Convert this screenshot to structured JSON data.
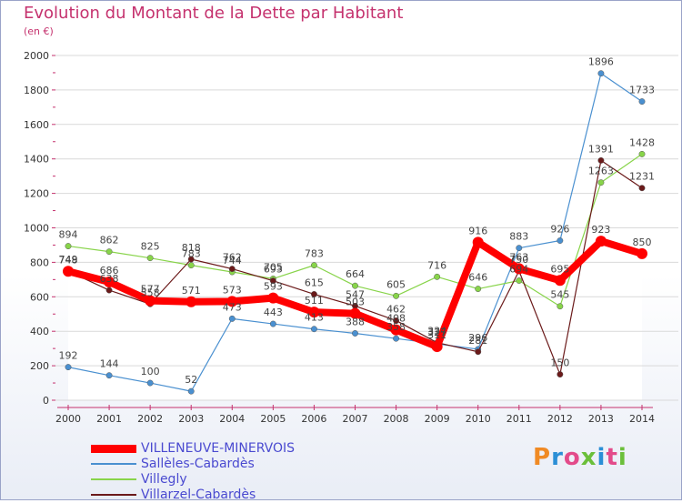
{
  "header": {
    "title": "Evolution du Montant de la Dette par Habitant",
    "subtitle": "(en €)"
  },
  "logo": {
    "text": "Proxiti",
    "colors": [
      "#f08a24",
      "#2b8fd6",
      "#e34b8a",
      "#6bbf3a",
      "#2b8fd6",
      "#e34b8a",
      "#6bbf3a"
    ]
  },
  "chart_data": {
    "type": "line",
    "title": "Evolution du Montant de la Dette par Habitant",
    "subtitle": "(en €)",
    "xlabel": "",
    "ylabel": "",
    "x": [
      "2000",
      "2001",
      "2002",
      "2003",
      "2004",
      "2005",
      "2006",
      "2007",
      "2008",
      "2009",
      "2010",
      "2011",
      "2012",
      "2013",
      "2014"
    ],
    "ylim": [
      0,
      2000
    ],
    "yticks": [
      0,
      200,
      400,
      600,
      800,
      1000,
      1200,
      1400,
      1600,
      1800,
      2000
    ],
    "grid": true,
    "legend_position": "bottom-left",
    "series": [
      {
        "name": "VILLENEUVE-MINERVOIS",
        "color": "#ff0000",
        "values": [
          748,
          686,
          577,
          571,
          573,
          593,
          511,
          503,
          408,
          311,
          916,
          763,
          695,
          923,
          850
        ],
        "labels": [
          "748",
          "686",
          "577",
          "571",
          "573",
          "593",
          "511",
          "503",
          "408",
          "311",
          "916",
          "763",
          "695",
          "923",
          "850"
        ]
      },
      {
        "name": "Sallèles-Cabardès",
        "color": "#4a90d0",
        "values": [
          192,
          144,
          100,
          52,
          473,
          443,
          413,
          388,
          358,
          327,
          296,
          883,
          926,
          1896,
          1733
        ],
        "labels": [
          "192",
          "144",
          "100",
          "52",
          "473",
          "443",
          "413",
          "388",
          "358",
          "327",
          "296",
          "883",
          "926",
          "1896",
          "1733"
        ]
      },
      {
        "name": "Villegly",
        "color": "#88d44a",
        "values": [
          894,
          862,
          825,
          783,
          744,
          705,
          783,
          664,
          605,
          716,
          646,
          694,
          545,
          1263,
          1428
        ],
        "labels": [
          "894",
          "862",
          "825",
          "783",
          "744",
          "705",
          "783",
          "664",
          "605",
          "716",
          "646",
          "694",
          "545",
          "1263",
          "1428"
        ]
      },
      {
        "name": "Villarzel-Cabardès",
        "color": "#6b1a1a",
        "values": [
          749,
          638,
          558,
          818,
          762,
          693,
          615,
          547,
          462,
          334,
          281,
          750,
          150,
          1391,
          1231
        ],
        "labels": [
          "749",
          "638",
          "558",
          "818",
          "762",
          "693",
          "615",
          "547",
          "462",
          "334",
          "281",
          "750",
          "150",
          "1391",
          "1231"
        ]
      }
    ]
  }
}
